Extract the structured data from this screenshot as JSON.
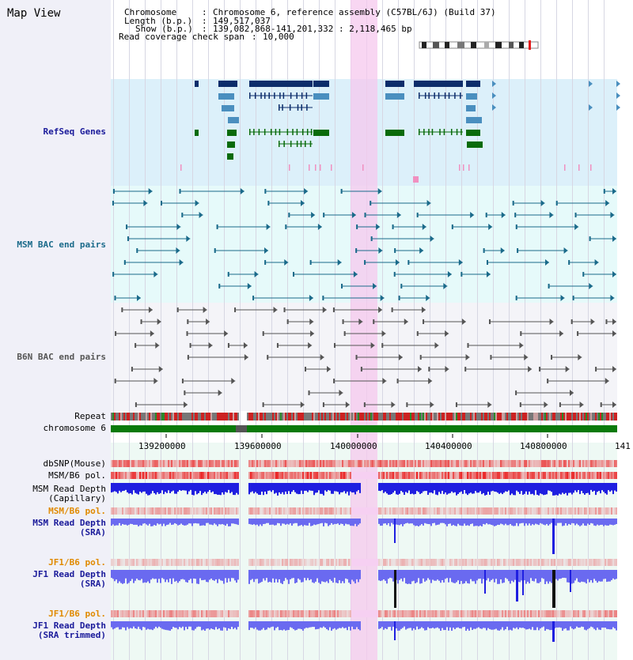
{
  "title": "Map View",
  "info": {
    "chromosome_label": "Chromosome",
    "chromosome_value": "Chromosome 6, reference assembly (C57BL/6J) (Build 37)",
    "length_label": "Length (b.p.)",
    "length_value": "149,517,037",
    "show_label": "Show (b.p.)",
    "show_value": "139,082,868-141,201,332 : 2,118,465 bp",
    "coverage_label": "Read coverage check span",
    "coverage_value": "10,000"
  },
  "tracks": {
    "refseq": "RefSeq Genes",
    "msm_bac": "MSM BAC end pairs",
    "b6n_bac": "B6N BAC end pairs",
    "repeat": "Repeat",
    "chromosome": "chromosome 6",
    "dbsnp": "dbSNP(Mouse)",
    "msm_b6_pol": "MSM/B6 pol.",
    "msm_depth_cap_1": "MSM Read Depth",
    "msm_depth_cap_2": "(Capillary)",
    "msm_b6_pol_2": "MSM/B6 pol.",
    "msm_depth_sra_1": "MSM Read Depth",
    "msm_depth_sra_2": "(SRA)",
    "jf1_b6_pol": "JF1/B6 pol.",
    "jf1_depth_sra_1": "JF1 Read Depth",
    "jf1_depth_sra_2": "(SRA)",
    "jf1_b6_pol_2": "JF1/B6 pol.",
    "jf1_depth_trim_1": "JF1 Read Depth",
    "jf1_depth_trim_2": "(SRA trimmed)"
  },
  "axis": {
    "ticks": [
      "139200000",
      "139600000",
      "140000000",
      "140400000",
      "140800000",
      "141"
    ]
  },
  "colors": {
    "refseq_dark": "#0c2d6b",
    "refseq_mid": "#4a8fbf",
    "refseq_green": "#0a6b0a",
    "msm_pair": "#1a6a8a",
    "b6n_pair": "#555555",
    "depth_blue": "#1f1fe0",
    "depth_light": "#6a6af0",
    "pol_red": "#e41a1a",
    "highlight": "#f6c8ee"
  }
}
